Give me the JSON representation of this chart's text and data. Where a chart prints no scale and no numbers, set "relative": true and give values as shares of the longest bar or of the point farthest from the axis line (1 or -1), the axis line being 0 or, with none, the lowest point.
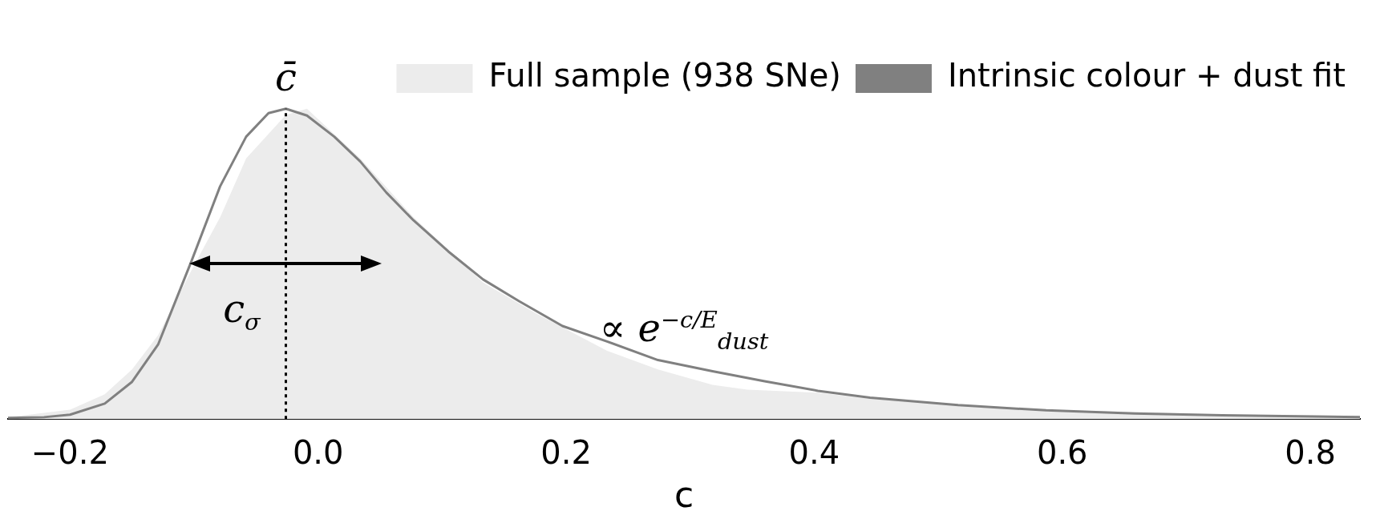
{
  "chart_data": {
    "type": "line",
    "relative": true,
    "xlabel": "c",
    "xlim": [
      -0.25,
      0.84
    ],
    "xticks": [
      {
        "value": -0.2,
        "label": "−0.2"
      },
      {
        "value": 0,
        "label": "0.0"
      },
      {
        "value": 0.2,
        "label": "0.2"
      },
      {
        "value": 0.4,
        "label": "0.4"
      },
      {
        "value": 0.6,
        "label": "0.6"
      },
      {
        "value": 0.8,
        "label": "0.8"
      }
    ],
    "legend": "top right",
    "grid": false,
    "series": [
      {
        "name": "Full sample (938 SNe)",
        "type": "area",
        "color": "#ececec",
        "x": [
          -0.25,
          -0.2,
          -0.172,
          -0.15,
          -0.129,
          -0.102,
          -0.079,
          -0.058,
          -0.026,
          -0.009,
          0.034,
          0.077,
          0.133,
          0.176,
          0.233,
          0.274,
          0.318,
          0.346,
          0.403,
          0.445,
          0.587,
          0.729,
          0.84
        ],
        "values": [
          0.006,
          0.03,
          0.08,
          0.16,
          0.27,
          0.48,
          0.65,
          0.84,
          0.98,
          1.0,
          0.84,
          0.65,
          0.44,
          0.34,
          0.22,
          0.16,
          0.11,
          0.095,
          0.085,
          0.065,
          0.03,
          0.015,
          0.01
        ]
      },
      {
        "name": "Intrinsic colour + dust fit",
        "type": "line",
        "color": "#808080",
        "x": [
          -0.25,
          -0.221,
          -0.2,
          -0.172,
          -0.15,
          -0.129,
          -0.102,
          -0.079,
          -0.058,
          -0.04,
          -0.026,
          -0.009,
          0.013,
          0.034,
          0.055,
          0.077,
          0.105,
          0.133,
          0.162,
          0.197,
          0.233,
          0.274,
          0.318,
          0.36,
          0.403,
          0.445,
          0.516,
          0.587,
          0.658,
          0.729,
          0.84
        ],
        "values": [
          0.004,
          0.006,
          0.014,
          0.05,
          0.12,
          0.24,
          0.51,
          0.75,
          0.91,
          0.986,
          1.0,
          0.978,
          0.91,
          0.83,
          0.73,
          0.64,
          0.54,
          0.45,
          0.38,
          0.3,
          0.25,
          0.19,
          0.154,
          0.122,
          0.091,
          0.069,
          0.045,
          0.028,
          0.018,
          0.012,
          0.006
        ]
      }
    ],
    "ref_lines": [
      {
        "axis": "x",
        "value": -0.026,
        "label": "c̄",
        "color": "#000000",
        "line_style": "dotted"
      }
    ],
    "annotations": [
      "c$_{σ}$",
      "∝ e$^{−c/E}$$_{dust}$"
    ]
  }
}
